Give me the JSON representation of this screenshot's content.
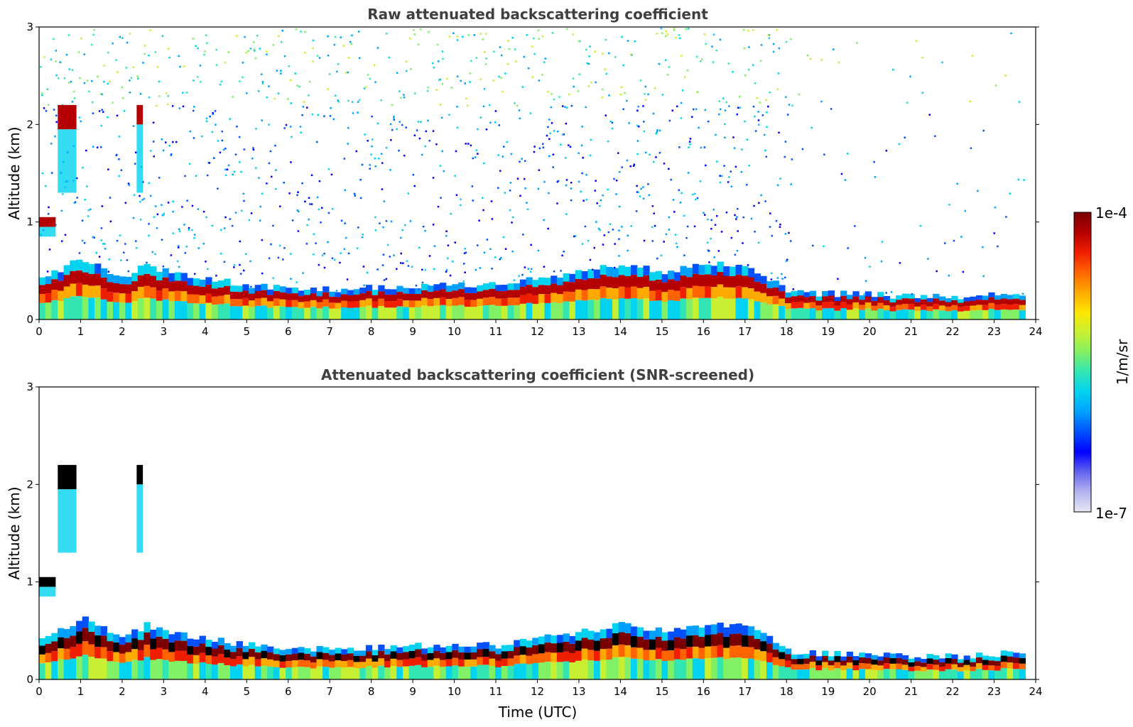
{
  "chart_data": [
    {
      "type": "heatmap",
      "title": "Raw attenuated backscattering coefficient",
      "xlabel": "",
      "ylabel": "Altitude (km)",
      "xlim": [
        0,
        24
      ],
      "ylim": [
        0,
        3
      ],
      "xticks": [
        "0",
        "1",
        "2",
        "3",
        "4",
        "5",
        "6",
        "7",
        "8",
        "9",
        "10",
        "11",
        "12",
        "13",
        "14",
        "15",
        "16",
        "17",
        "18",
        "19",
        "20",
        "21",
        "22",
        "23",
        "24"
      ],
      "yticks": [
        "0",
        "1",
        "2",
        "3"
      ],
      "screened": false,
      "features": {
        "boundary_layer_top_km": [
          [
            0,
            0.3
          ],
          [
            1,
            0.45
          ],
          [
            2,
            0.3
          ],
          [
            2.5,
            0.4
          ],
          [
            3,
            0.35
          ],
          [
            5,
            0.25
          ],
          [
            7,
            0.22
          ],
          [
            9,
            0.25
          ],
          [
            11,
            0.25
          ],
          [
            13,
            0.35
          ],
          [
            14,
            0.4
          ],
          [
            15,
            0.35
          ],
          [
            16,
            0.4
          ],
          [
            17,
            0.4
          ],
          [
            18,
            0.2
          ],
          [
            20,
            0.18
          ],
          [
            22,
            0.17
          ],
          [
            23.7,
            0.2
          ]
        ],
        "cloud_layers": [
          {
            "x0": 0.45,
            "x1": 0.9,
            "y0": 1.95,
            "y1": 2.2
          },
          {
            "x0": 2.35,
            "x1": 2.5,
            "y0": 2.0,
            "y1": 2.2
          },
          {
            "x0": 0.0,
            "x1": 0.4,
            "y0": 0.95,
            "y1": 1.05
          }
        ]
      }
    },
    {
      "type": "heatmap",
      "title": "Attenuated backscattering coefficient (SNR-screened)",
      "xlabel": "Time (UTC)",
      "ylabel": "Altitude (km)",
      "xlim": [
        0,
        24
      ],
      "ylim": [
        0,
        3
      ],
      "xticks": [
        "0",
        "1",
        "2",
        "3",
        "4",
        "5",
        "6",
        "7",
        "8",
        "9",
        "10",
        "11",
        "12",
        "13",
        "14",
        "15",
        "16",
        "17",
        "18",
        "19",
        "20",
        "21",
        "22",
        "23",
        "24"
      ],
      "yticks": [
        "0",
        "1",
        "2",
        "3"
      ],
      "screened": true,
      "features": {
        "boundary_layer_top_km": [
          [
            0,
            0.3
          ],
          [
            1,
            0.45
          ],
          [
            2,
            0.3
          ],
          [
            2.5,
            0.4
          ],
          [
            3,
            0.35
          ],
          [
            5,
            0.25
          ],
          [
            7,
            0.22
          ],
          [
            9,
            0.25
          ],
          [
            11,
            0.25
          ],
          [
            13,
            0.35
          ],
          [
            14,
            0.4
          ],
          [
            15,
            0.35
          ],
          [
            16,
            0.4
          ],
          [
            17,
            0.4
          ],
          [
            18,
            0.2
          ],
          [
            20,
            0.18
          ],
          [
            22,
            0.17
          ],
          [
            23.7,
            0.2
          ]
        ],
        "cloud_layers": [
          {
            "x0": 0.45,
            "x1": 0.9,
            "y0": 1.95,
            "y1": 2.2
          },
          {
            "x0": 2.35,
            "x1": 2.5,
            "y0": 2.0,
            "y1": 2.2
          },
          {
            "x0": 0.0,
            "x1": 0.4,
            "y0": 0.95,
            "y1": 1.05
          }
        ]
      }
    }
  ],
  "colorbar": {
    "label": "1/m/sr",
    "max_label": "1e-4",
    "min_label": "1e-7",
    "colormap": [
      "#e6e6f5",
      "#b4b4f0",
      "#6464f0",
      "#0000ff",
      "#0050ff",
      "#00a0ff",
      "#00d2f0",
      "#32e6b4",
      "#82f064",
      "#c8f032",
      "#ffe600",
      "#ffaa00",
      "#ff6400",
      "#f01e00",
      "#b40000",
      "#7a0000"
    ]
  }
}
